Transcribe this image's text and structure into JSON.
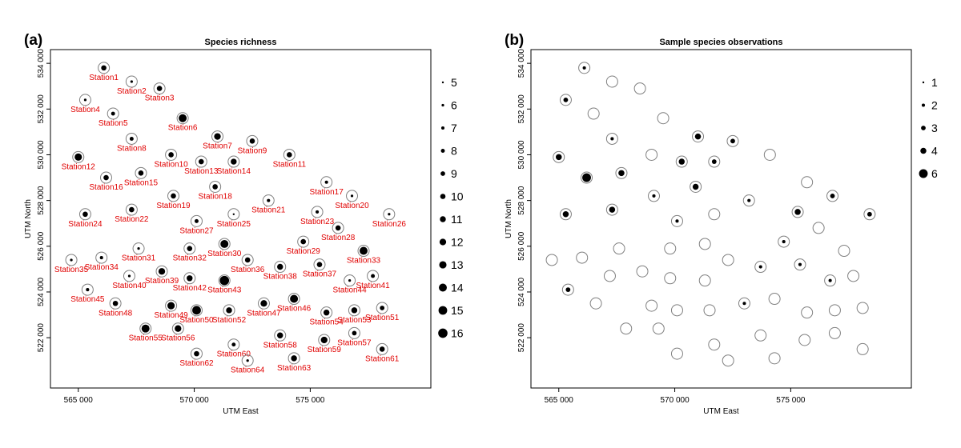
{
  "chart_data": [
    {
      "type": "scatter",
      "panel_label": "(a)",
      "title": "Species richness",
      "xlabel": "UTM East",
      "ylabel": "UTM North",
      "xlim": [
        563800,
        580200
      ],
      "ylim": [
        519800,
        534600
      ],
      "xticks": [
        565000,
        570000,
        575000
      ],
      "xtick_labels": [
        "565 000",
        "570 000",
        "575 000"
      ],
      "yticks": [
        522000,
        524000,
        526000,
        528000,
        530000,
        532000,
        534000
      ],
      "ytick_labels": [
        "522 000",
        "524 000",
        "526 000",
        "528 000",
        "530 000",
        "532 000",
        "534 000"
      ],
      "legend": [
        {
          "value": 5,
          "label": "5"
        },
        {
          "value": 6,
          "label": "6"
        },
        {
          "value": 7,
          "label": "7"
        },
        {
          "value": 8,
          "label": "8"
        },
        {
          "value": 9,
          "label": "9"
        },
        {
          "value": 10,
          "label": "10"
        },
        {
          "value": 11,
          "label": "11"
        },
        {
          "value": 12,
          "label": "12"
        },
        {
          "value": 13,
          "label": "13"
        },
        {
          "value": 14,
          "label": "14"
        },
        {
          "value": 15,
          "label": "15"
        },
        {
          "value": 16,
          "label": "16"
        }
      ],
      "legend_position": "right",
      "colors": {
        "labels": "#e00000",
        "points": "#000000",
        "rings": "#808080"
      },
      "points": [
        {
          "label": "Station1",
          "x": 566100,
          "y": 533800,
          "value": 10
        },
        {
          "label": "Station2",
          "x": 567300,
          "y": 533200,
          "value": 6
        },
        {
          "label": "Station3",
          "x": 568500,
          "y": 532900,
          "value": 10
        },
        {
          "label": "Station4",
          "x": 565300,
          "y": 532400,
          "value": 6
        },
        {
          "label": "Station5",
          "x": 566500,
          "y": 531800,
          "value": 8
        },
        {
          "label": "Station6",
          "x": 569500,
          "y": 531600,
          "value": 14
        },
        {
          "label": "Station7",
          "x": 571000,
          "y": 530800,
          "value": 12
        },
        {
          "label": "Station8",
          "x": 567300,
          "y": 530700,
          "value": 8
        },
        {
          "label": "Station9",
          "x": 572500,
          "y": 530600,
          "value": 10
        },
        {
          "label": "Station10",
          "x": 569000,
          "y": 530000,
          "value": 10
        },
        {
          "label": "Station11",
          "x": 574100,
          "y": 530000,
          "value": 10
        },
        {
          "label": "Station12",
          "x": 565000,
          "y": 529900,
          "value": 13
        },
        {
          "label": "Station13",
          "x": 570300,
          "y": 529700,
          "value": 10
        },
        {
          "label": "Station14",
          "x": 571700,
          "y": 529700,
          "value": 11
        },
        {
          "label": "Station15",
          "x": 567700,
          "y": 529200,
          "value": 10
        },
        {
          "label": "Station16",
          "x": 566200,
          "y": 529000,
          "value": 10
        },
        {
          "label": "Station17",
          "x": 575700,
          "y": 528800,
          "value": 7
        },
        {
          "label": "Station18",
          "x": 570900,
          "y": 528600,
          "value": 10
        },
        {
          "label": "Station19",
          "x": 569100,
          "y": 528200,
          "value": 10
        },
        {
          "label": "Station20",
          "x": 576800,
          "y": 528200,
          "value": 6
        },
        {
          "label": "Station21",
          "x": 573200,
          "y": 528000,
          "value": 7
        },
        {
          "label": "Station22",
          "x": 567300,
          "y": 527600,
          "value": 10
        },
        {
          "label": "Station23",
          "x": 575300,
          "y": 527500,
          "value": 7
        },
        {
          "label": "Station24",
          "x": 565300,
          "y": 527400,
          "value": 10
        },
        {
          "label": "Station25",
          "x": 571700,
          "y": 527400,
          "value": 5
        },
        {
          "label": "Station26",
          "x": 578400,
          "y": 527400,
          "value": 6
        },
        {
          "label": "Station27",
          "x": 570100,
          "y": 527100,
          "value": 8
        },
        {
          "label": "Station28",
          "x": 576200,
          "y": 526800,
          "value": 10
        },
        {
          "label": "Station29",
          "x": 574700,
          "y": 526200,
          "value": 10
        },
        {
          "label": "Station30",
          "x": 571300,
          "y": 526100,
          "value": 14
        },
        {
          "label": "Station31",
          "x": 567600,
          "y": 525900,
          "value": 6
        },
        {
          "label": "Station32",
          "x": 569800,
          "y": 525900,
          "value": 10
        },
        {
          "label": "Station33",
          "x": 577300,
          "y": 525800,
          "value": 14
        },
        {
          "label": "Station34",
          "x": 566000,
          "y": 525500,
          "value": 7
        },
        {
          "label": "Station35",
          "x": 564700,
          "y": 525400,
          "value": 6
        },
        {
          "label": "Station36",
          "x": 572300,
          "y": 525400,
          "value": 10
        },
        {
          "label": "Station37",
          "x": 575400,
          "y": 525200,
          "value": 10
        },
        {
          "label": "Station38",
          "x": 573700,
          "y": 525100,
          "value": 11
        },
        {
          "label": "Station39",
          "x": 568600,
          "y": 524900,
          "value": 12
        },
        {
          "label": "Station40",
          "x": 567200,
          "y": 524700,
          "value": 6
        },
        {
          "label": "Station41",
          "x": 577700,
          "y": 524700,
          "value": 8
        },
        {
          "label": "Station42",
          "x": 569800,
          "y": 524600,
          "value": 11
        },
        {
          "label": "Station43",
          "x": 571300,
          "y": 524500,
          "value": 16
        },
        {
          "label": "Station44",
          "x": 576700,
          "y": 524500,
          "value": 6
        },
        {
          "label": "Station45",
          "x": 565400,
          "y": 524100,
          "value": 7
        },
        {
          "label": "Station46",
          "x": 574300,
          "y": 523700,
          "value": 14
        },
        {
          "label": "Station47",
          "x": 573000,
          "y": 523500,
          "value": 12
        },
        {
          "label": "Station48",
          "x": 566600,
          "y": 523500,
          "value": 10
        },
        {
          "label": "Station49",
          "x": 569000,
          "y": 523400,
          "value": 13
        },
        {
          "label": "Station50",
          "x": 570100,
          "y": 523200,
          "value": 15
        },
        {
          "label": "Station51",
          "x": 578100,
          "y": 523300,
          "value": 9
        },
        {
          "label": "Station52",
          "x": 571500,
          "y": 523200,
          "value": 11
        },
        {
          "label": "Station53",
          "x": 576900,
          "y": 523200,
          "value": 11
        },
        {
          "label": "Station54",
          "x": 575700,
          "y": 523100,
          "value": 11
        },
        {
          "label": "Station55",
          "x": 567900,
          "y": 522400,
          "value": 14
        },
        {
          "label": "Station56",
          "x": 569300,
          "y": 522400,
          "value": 12
        },
        {
          "label": "Station57",
          "x": 576900,
          "y": 522200,
          "value": 9
        },
        {
          "label": "Station58",
          "x": 573700,
          "y": 522100,
          "value": 11
        },
        {
          "label": "Station59",
          "x": 575600,
          "y": 521900,
          "value": 12
        },
        {
          "label": "Station60",
          "x": 571700,
          "y": 521700,
          "value": 8
        },
        {
          "label": "Station61",
          "x": 578100,
          "y": 521500,
          "value": 10
        },
        {
          "label": "Station62",
          "x": 570100,
          "y": 521300,
          "value": 10
        },
        {
          "label": "Station63",
          "x": 574300,
          "y": 521100,
          "value": 11
        },
        {
          "label": "Station64",
          "x": 572300,
          "y": 521000,
          "value": 6
        }
      ]
    },
    {
      "type": "scatter",
      "panel_label": "(b)",
      "title": "Sample species observations",
      "xlabel": "UTM East",
      "ylabel": "UTM North",
      "xlim": [
        563800,
        580200
      ],
      "ylim": [
        519800,
        534600
      ],
      "xticks": [
        565000,
        570000,
        575000
      ],
      "xtick_labels": [
        "565 000",
        "570 000",
        "575 000"
      ],
      "yticks": [
        522000,
        524000,
        526000,
        528000,
        530000,
        532000,
        534000
      ],
      "ytick_labels": [
        "522 000",
        "524 000",
        "526 000",
        "528 000",
        "530 000",
        "532 000",
        "534 000"
      ],
      "legend": [
        {
          "value": 1,
          "label": "1"
        },
        {
          "value": 2,
          "label": "2"
        },
        {
          "value": 3,
          "label": "3"
        },
        {
          "value": 4,
          "label": "4"
        },
        {
          "value": 6,
          "label": "6"
        }
      ],
      "legend_position": "right",
      "colors": {
        "points": "#000000",
        "rings": "#808080"
      },
      "points": [
        {
          "x": 566100,
          "y": 533800,
          "value": 2
        },
        {
          "x": 567300,
          "y": 533200,
          "value": 0
        },
        {
          "x": 568500,
          "y": 532900,
          "value": 0
        },
        {
          "x": 565300,
          "y": 532400,
          "value": 3
        },
        {
          "x": 566500,
          "y": 531800,
          "value": 0
        },
        {
          "x": 569500,
          "y": 531600,
          "value": 0
        },
        {
          "x": 571000,
          "y": 530800,
          "value": 4
        },
        {
          "x": 567300,
          "y": 530700,
          "value": 2
        },
        {
          "x": 572500,
          "y": 530600,
          "value": 3
        },
        {
          "x": 569000,
          "y": 530000,
          "value": 0
        },
        {
          "x": 574100,
          "y": 530000,
          "value": 0
        },
        {
          "x": 565000,
          "y": 529900,
          "value": 4
        },
        {
          "x": 570300,
          "y": 529700,
          "value": 4
        },
        {
          "x": 571700,
          "y": 529700,
          "value": 3
        },
        {
          "x": 567700,
          "y": 529200,
          "value": 4
        },
        {
          "x": 566200,
          "y": 529000,
          "value": 6
        },
        {
          "x": 575700,
          "y": 528800,
          "value": 0
        },
        {
          "x": 570900,
          "y": 528600,
          "value": 4
        },
        {
          "x": 569100,
          "y": 528200,
          "value": 2
        },
        {
          "x": 576800,
          "y": 528200,
          "value": 3
        },
        {
          "x": 573200,
          "y": 528000,
          "value": 2
        },
        {
          "x": 567300,
          "y": 527600,
          "value": 4
        },
        {
          "x": 575300,
          "y": 527500,
          "value": 4
        },
        {
          "x": 565300,
          "y": 527400,
          "value": 4
        },
        {
          "x": 571700,
          "y": 527400,
          "value": 0
        },
        {
          "x": 578400,
          "y": 527400,
          "value": 3
        },
        {
          "x": 570100,
          "y": 527100,
          "value": 2
        },
        {
          "x": 576200,
          "y": 526800,
          "value": 0
        },
        {
          "x": 574700,
          "y": 526200,
          "value": 2
        },
        {
          "x": 571300,
          "y": 526100,
          "value": 0
        },
        {
          "x": 567600,
          "y": 525900,
          "value": 0
        },
        {
          "x": 569800,
          "y": 525900,
          "value": 0
        },
        {
          "x": 577300,
          "y": 525800,
          "value": 0
        },
        {
          "x": 566000,
          "y": 525500,
          "value": 0
        },
        {
          "x": 564700,
          "y": 525400,
          "value": 0
        },
        {
          "x": 572300,
          "y": 525400,
          "value": 0
        },
        {
          "x": 575400,
          "y": 525200,
          "value": 2
        },
        {
          "x": 573700,
          "y": 525100,
          "value": 2
        },
        {
          "x": 568600,
          "y": 524900,
          "value": 0
        },
        {
          "x": 567200,
          "y": 524700,
          "value": 0
        },
        {
          "x": 577700,
          "y": 524700,
          "value": 0
        },
        {
          "x": 569800,
          "y": 524600,
          "value": 0
        },
        {
          "x": 571300,
          "y": 524500,
          "value": 0
        },
        {
          "x": 576700,
          "y": 524500,
          "value": 2
        },
        {
          "x": 565400,
          "y": 524100,
          "value": 3
        },
        {
          "x": 574300,
          "y": 523700,
          "value": 0
        },
        {
          "x": 573000,
          "y": 523500,
          "value": 2
        },
        {
          "x": 566600,
          "y": 523500,
          "value": 0
        },
        {
          "x": 569000,
          "y": 523400,
          "value": 0
        },
        {
          "x": 570100,
          "y": 523200,
          "value": 0
        },
        {
          "x": 578100,
          "y": 523300,
          "value": 0
        },
        {
          "x": 571500,
          "y": 523200,
          "value": 0
        },
        {
          "x": 576900,
          "y": 523200,
          "value": 0
        },
        {
          "x": 575700,
          "y": 523100,
          "value": 0
        },
        {
          "x": 567900,
          "y": 522400,
          "value": 0
        },
        {
          "x": 569300,
          "y": 522400,
          "value": 0
        },
        {
          "x": 576900,
          "y": 522200,
          "value": 0
        },
        {
          "x": 573700,
          "y": 522100,
          "value": 0
        },
        {
          "x": 575600,
          "y": 521900,
          "value": 0
        },
        {
          "x": 571700,
          "y": 521700,
          "value": 0
        },
        {
          "x": 578100,
          "y": 521500,
          "value": 0
        },
        {
          "x": 570100,
          "y": 521300,
          "value": 0
        },
        {
          "x": 574300,
          "y": 521100,
          "value": 0
        },
        {
          "x": 572300,
          "y": 521000,
          "value": 0
        }
      ]
    }
  ]
}
